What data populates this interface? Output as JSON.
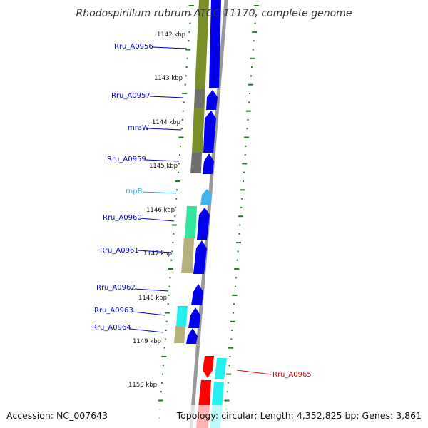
{
  "title": "Rhodospirillum rubrum ATCC 11170, complete genome",
  "footer": {
    "accession": "Accession: NC_007643",
    "topology": "Topology: circular; Length: 4,352,825 bp; Genes: 3,861"
  },
  "kbp_labels": [
    "1142 kbp",
    "1143 kbp",
    "1144 kbp",
    "1145 kbp",
    "1146 kbp",
    "1147 kbp",
    "1148 kbp",
    "1149 kbp",
    "1150 kbp"
  ],
  "genes": [
    {
      "name": "Rru_A0956",
      "strand": "forward",
      "type": "CDS",
      "color": "#0000cc"
    },
    {
      "name": "Rru_A0957",
      "strand": "forward",
      "type": "CDS",
      "color": "#0000cc"
    },
    {
      "name": "mraW",
      "strand": "forward",
      "type": "CDS",
      "color": "#0000cc"
    },
    {
      "name": "Rru_A0959",
      "strand": "forward",
      "type": "CDS",
      "color": "#0000cc"
    },
    {
      "name": "rnpB",
      "strand": "forward",
      "type": "RNA",
      "color": "#22aadd"
    },
    {
      "name": "Rru_A0960",
      "strand": "forward",
      "type": "CDS",
      "color": "#0000cc"
    },
    {
      "name": "Rru_A0961",
      "strand": "forward",
      "type": "CDS",
      "color": "#0000cc"
    },
    {
      "name": "Rru_A0962",
      "strand": "forward",
      "type": "CDS",
      "color": "#0000cc"
    },
    {
      "name": "Rru_A0963",
      "strand": "forward",
      "type": "CDS",
      "color": "#0000cc"
    },
    {
      "name": "Rru_A0964",
      "strand": "forward",
      "type": "CDS",
      "color": "#0000cc"
    },
    {
      "name": "Rru_A0965",
      "strand": "reverse",
      "type": "CDS",
      "color": "#dd0000"
    }
  ],
  "colors": {
    "backbone": "#888888",
    "forward_cds": "#0000ee",
    "reverse_cds": "#ff0000",
    "rna": "#3fb6f0",
    "cog_olive": "#7a8f2a",
    "cog_gray": "#6f6f6f",
    "cog_mint": "#33e6a0",
    "cog_khaki": "#b8b07a",
    "cog_cyan": "#22f0f0",
    "tick_green": "#1f7a1f"
  }
}
